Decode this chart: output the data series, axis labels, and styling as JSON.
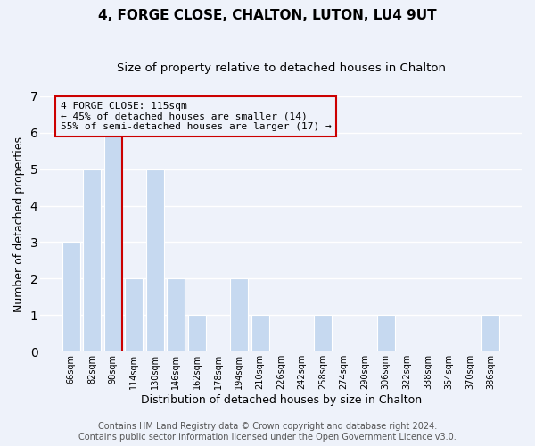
{
  "title": "4, FORGE CLOSE, CHALTON, LUTON, LU4 9UT",
  "subtitle": "Size of property relative to detached houses in Chalton",
  "xlabel": "Distribution of detached houses by size in Chalton",
  "ylabel": "Number of detached properties",
  "bar_labels": [
    "66sqm",
    "82sqm",
    "98sqm",
    "114sqm",
    "130sqm",
    "146sqm",
    "162sqm",
    "178sqm",
    "194sqm",
    "210sqm",
    "226sqm",
    "242sqm",
    "258sqm",
    "274sqm",
    "290sqm",
    "306sqm",
    "322sqm",
    "338sqm",
    "354sqm",
    "370sqm",
    "386sqm"
  ],
  "bar_values": [
    3,
    5,
    6,
    2,
    5,
    2,
    1,
    0,
    2,
    1,
    0,
    0,
    1,
    0,
    0,
    1,
    0,
    0,
    0,
    0,
    1
  ],
  "bar_color": "#c6d9f0",
  "bar_edge_color": "#ffffff",
  "highlight_line_index": 2,
  "highlight_line_color": "#cc0000",
  "ylim": [
    0,
    7
  ],
  "yticks": [
    0,
    1,
    2,
    3,
    4,
    5,
    6,
    7
  ],
  "annotation_line1": "4 FORGE CLOSE: 115sqm",
  "annotation_line2": "← 45% of detached houses are smaller (14)",
  "annotation_line3": "55% of semi-detached houses are larger (17) →",
  "annotation_box_edge": "#cc0000",
  "footer_line1": "Contains HM Land Registry data © Crown copyright and database right 2024.",
  "footer_line2": "Contains public sector information licensed under the Open Government Licence v3.0.",
  "background_color": "#eef2fa",
  "plot_bg_color": "#eef2fa",
  "grid_color": "#ffffff",
  "title_fontsize": 11,
  "subtitle_fontsize": 9.5,
  "axis_label_fontsize": 9,
  "tick_fontsize": 7,
  "footer_fontsize": 7
}
